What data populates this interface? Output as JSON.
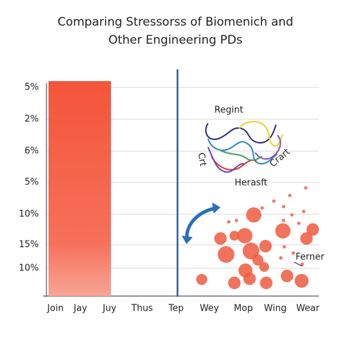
{
  "chart_data": {
    "type": "bar",
    "title_lines": [
      "Comparing Stressorss of Biomenich and",
      "Other Engineering PDs"
    ],
    "categories": [
      "Join",
      "Jay",
      "Juy",
      "Thus",
      "Tep",
      "Wey",
      "Mop",
      "Wing",
      "Wear"
    ],
    "y_labels": [
      "5%",
      "2%",
      "6%",
      "5%",
      "10%",
      "15%",
      "10%"
    ],
    "annotations": [
      "Regint",
      "Crt",
      "Crart",
      "Herasft",
      "Ferner"
    ]
  }
}
